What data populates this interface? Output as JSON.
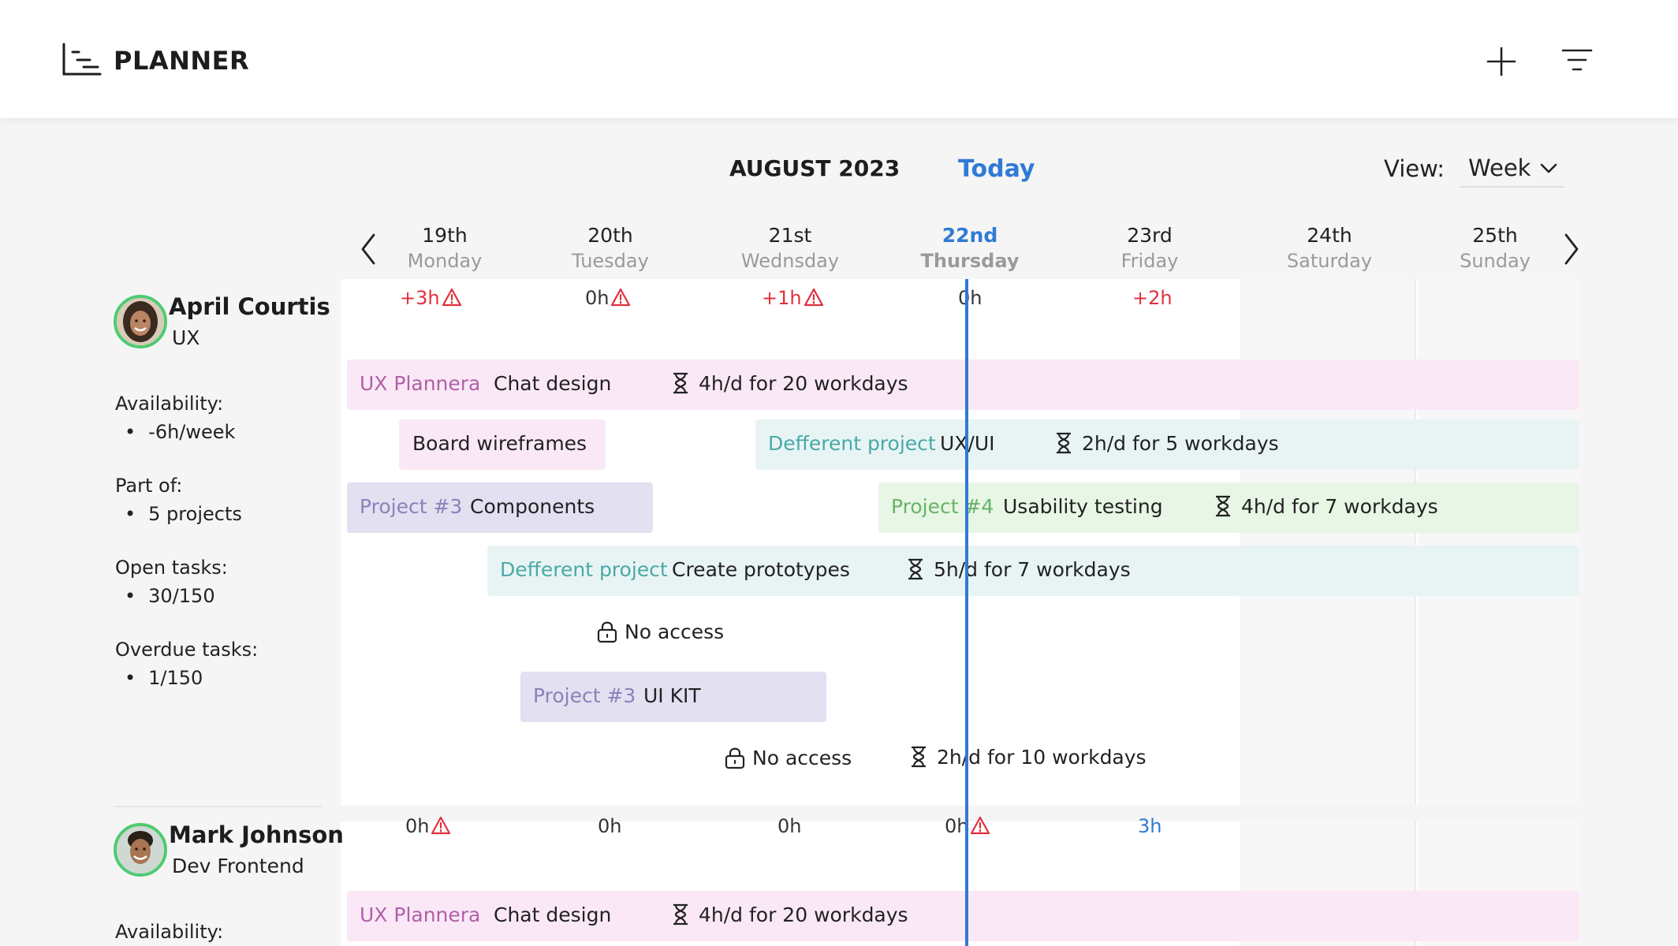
{
  "app": {
    "title": "PLANNER"
  },
  "toolbar": {
    "month": "AUGUST 2023",
    "today_label": "Today",
    "view_label": "View:",
    "view_value": "Week"
  },
  "days": [
    {
      "num": "19th",
      "name": "Monday"
    },
    {
      "num": "20th",
      "name": "Tuesday"
    },
    {
      "num": "21st",
      "name": "Wednsday"
    },
    {
      "num": "22nd",
      "name": "Thursday"
    },
    {
      "num": "23rd",
      "name": "Friday"
    },
    {
      "num": "24th",
      "name": "Saturday"
    },
    {
      "num": "25th",
      "name": "Sunday"
    }
  ],
  "people": [
    {
      "name": "April Courtis",
      "role": "UX",
      "availability_label": "Availability:",
      "availability": "-6h/week",
      "part_of_label": "Part of:",
      "part_of": "5 projects",
      "open_tasks_label": "Open tasks:",
      "open_tasks": "30/150",
      "overdue_label": "Overdue tasks:",
      "overdue": "1/150",
      "hours": [
        "+3h",
        "0h",
        "+1h",
        "0h",
        "+2h"
      ],
      "tasks": [
        {
          "project": "UX Plannera",
          "task": "Chat design",
          "duration": "4h/d for 20 workdays"
        },
        {
          "task": "Board wireframes"
        },
        {
          "project": "Defferent project",
          "task": "UX/UI",
          "duration": "2h/d for 5 workdays"
        },
        {
          "project": "Project #3",
          "task": "Components"
        },
        {
          "project": "Project #4",
          "task": "Usability testing",
          "duration": "4h/d for 7 workdays"
        },
        {
          "project": "Defferent project",
          "task": "Create prototypes",
          "duration": "5h/d for 7 workdays"
        },
        {
          "no_access": "No access"
        },
        {
          "project": "Project #3",
          "task": "UI KIT"
        },
        {
          "no_access": "No access",
          "duration": "2h/d for 10 workdays"
        }
      ]
    },
    {
      "name": "Mark Johnson",
      "role": "Dev Frontend",
      "availability_label": "Availability:",
      "hours": [
        "0h",
        "0h",
        "0h",
        "0h",
        "3h"
      ],
      "tasks": [
        {
          "project": "UX Plannera",
          "task": "Chat design",
          "duration": "4h/d for 20 workdays"
        }
      ]
    }
  ],
  "colors": {
    "accent": "#2f7ad6",
    "warning": "#e0313f",
    "avatar_ring": "#4ecb71"
  },
  "icons": [
    "planner-logo-icon",
    "plus-icon",
    "filter-icon",
    "chevron-down-icon",
    "chevron-left-icon",
    "chevron-right-icon",
    "warning-icon",
    "hourglass-icon",
    "lock-icon"
  ]
}
